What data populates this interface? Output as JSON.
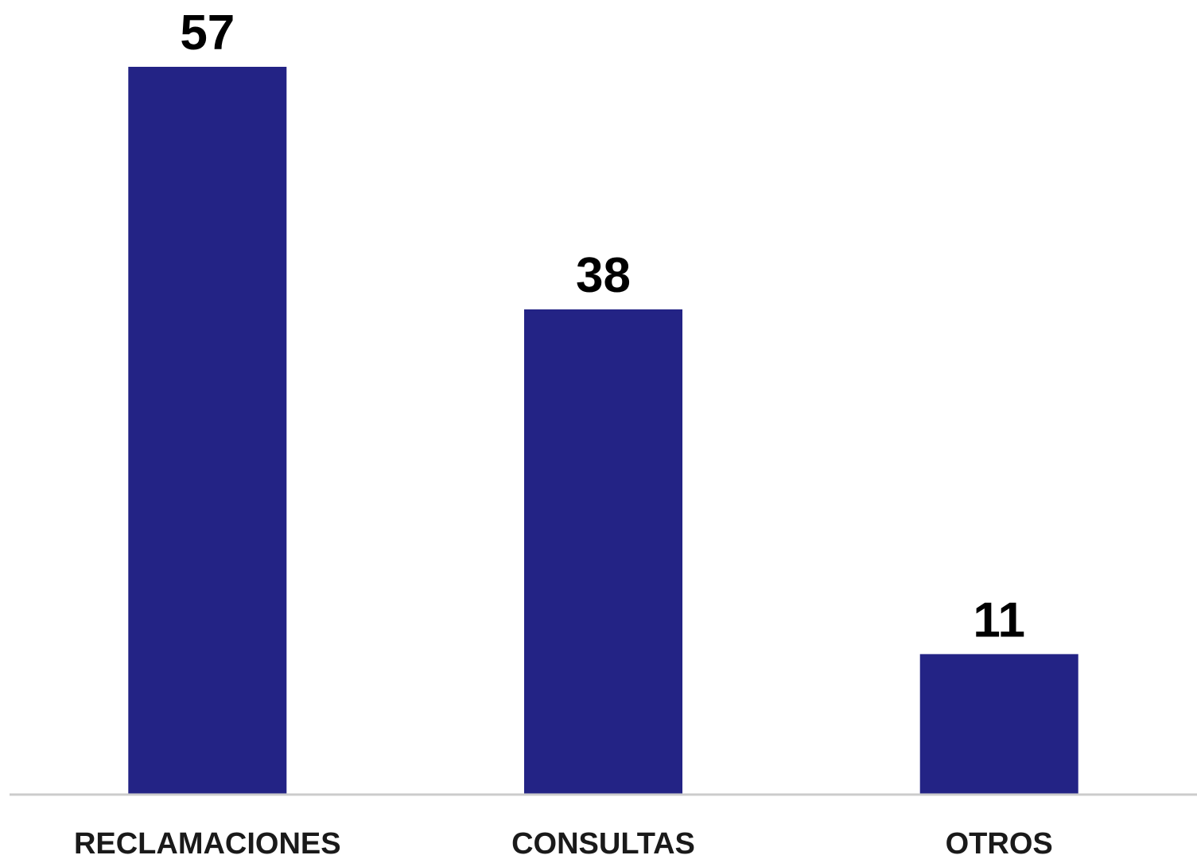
{
  "chart_data": {
    "type": "bar",
    "categories": [
      "RECLAMACIONES",
      "CONSULTAS",
      "OTROS"
    ],
    "values": [
      57,
      38,
      11
    ],
    "data_labels": [
      "57",
      "38",
      "11"
    ],
    "title": "",
    "xlabel": "",
    "ylabel": "",
    "ylim": [
      0,
      57
    ],
    "grid": false,
    "legend": "none",
    "bar_color": "#232385",
    "axis_color": "#cccccc",
    "label_color": "#000000"
  }
}
